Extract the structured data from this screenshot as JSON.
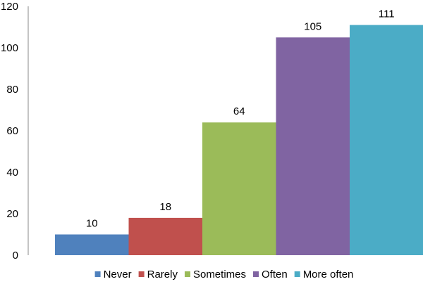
{
  "chart_data": {
    "type": "bar",
    "title": "",
    "xlabel": "",
    "ylabel": "",
    "categories": [
      "Never",
      "Rarely",
      "Sometimes",
      "Often",
      "More often"
    ],
    "values": [
      10,
      18,
      64,
      105,
      111
    ],
    "colors": [
      "#4f81bd",
      "#c0504d",
      "#9bbb59",
      "#8064a2",
      "#4bacc6"
    ],
    "ylim": [
      0,
      120
    ],
    "yticks": [
      0,
      20,
      40,
      60,
      80,
      100,
      120
    ],
    "grid": false,
    "legend_position": "bottom"
  }
}
